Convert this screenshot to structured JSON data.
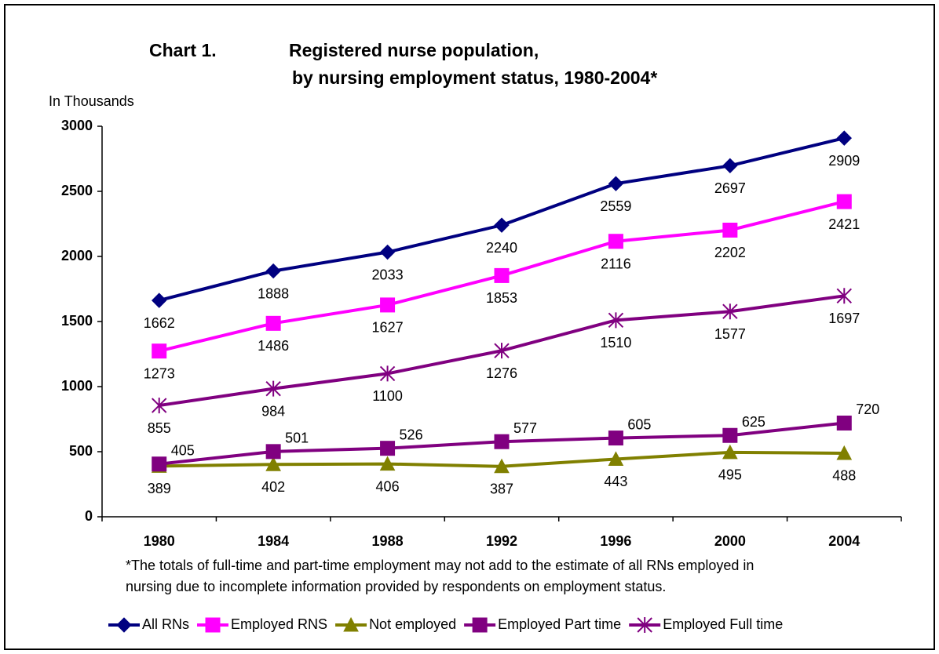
{
  "chart_data": {
    "type": "line",
    "title": [
      "Chart 1.",
      "Registered nurse population,",
      "by nursing employment status, 1980-2004*"
    ],
    "y_axis_label": "In Thousands",
    "note": [
      "*The totals of full-time and part-time employment may not add to the estimate of all RNs employed in",
      "nursing due to incomplete information provided by respondents on employment status."
    ],
    "categories": [
      "1980",
      "1984",
      "1988",
      "1992",
      "1996",
      "2000",
      "2004"
    ],
    "ylim": [
      0,
      3000
    ],
    "yticks": [
      0,
      500,
      1000,
      1500,
      2000,
      2500,
      3000
    ],
    "grid": false,
    "legend": "bottom",
    "series": [
      {
        "name": "All RNs",
        "color": "#000080",
        "marker": "diamond",
        "values": [
          1662,
          1888,
          2033,
          2240,
          2559,
          2697,
          2909
        ]
      },
      {
        "name": "Employed RNS",
        "color": "#ff00ff",
        "marker": "square",
        "values": [
          1273,
          1486,
          1627,
          1853,
          2116,
          2202,
          2421
        ]
      },
      {
        "name": "Not employed",
        "color": "#808000",
        "marker": "triangle",
        "values": [
          389,
          402,
          406,
          387,
          443,
          495,
          488
        ]
      },
      {
        "name": "Employed Part time",
        "color": "#800080",
        "marker": "square",
        "values": [
          405,
          501,
          526,
          577,
          605,
          625,
          720
        ]
      },
      {
        "name": "Employed Full time",
        "color": "#800080",
        "marker": "star",
        "values": [
          855,
          984,
          1100,
          1276,
          1510,
          1577,
          1697
        ]
      }
    ]
  }
}
